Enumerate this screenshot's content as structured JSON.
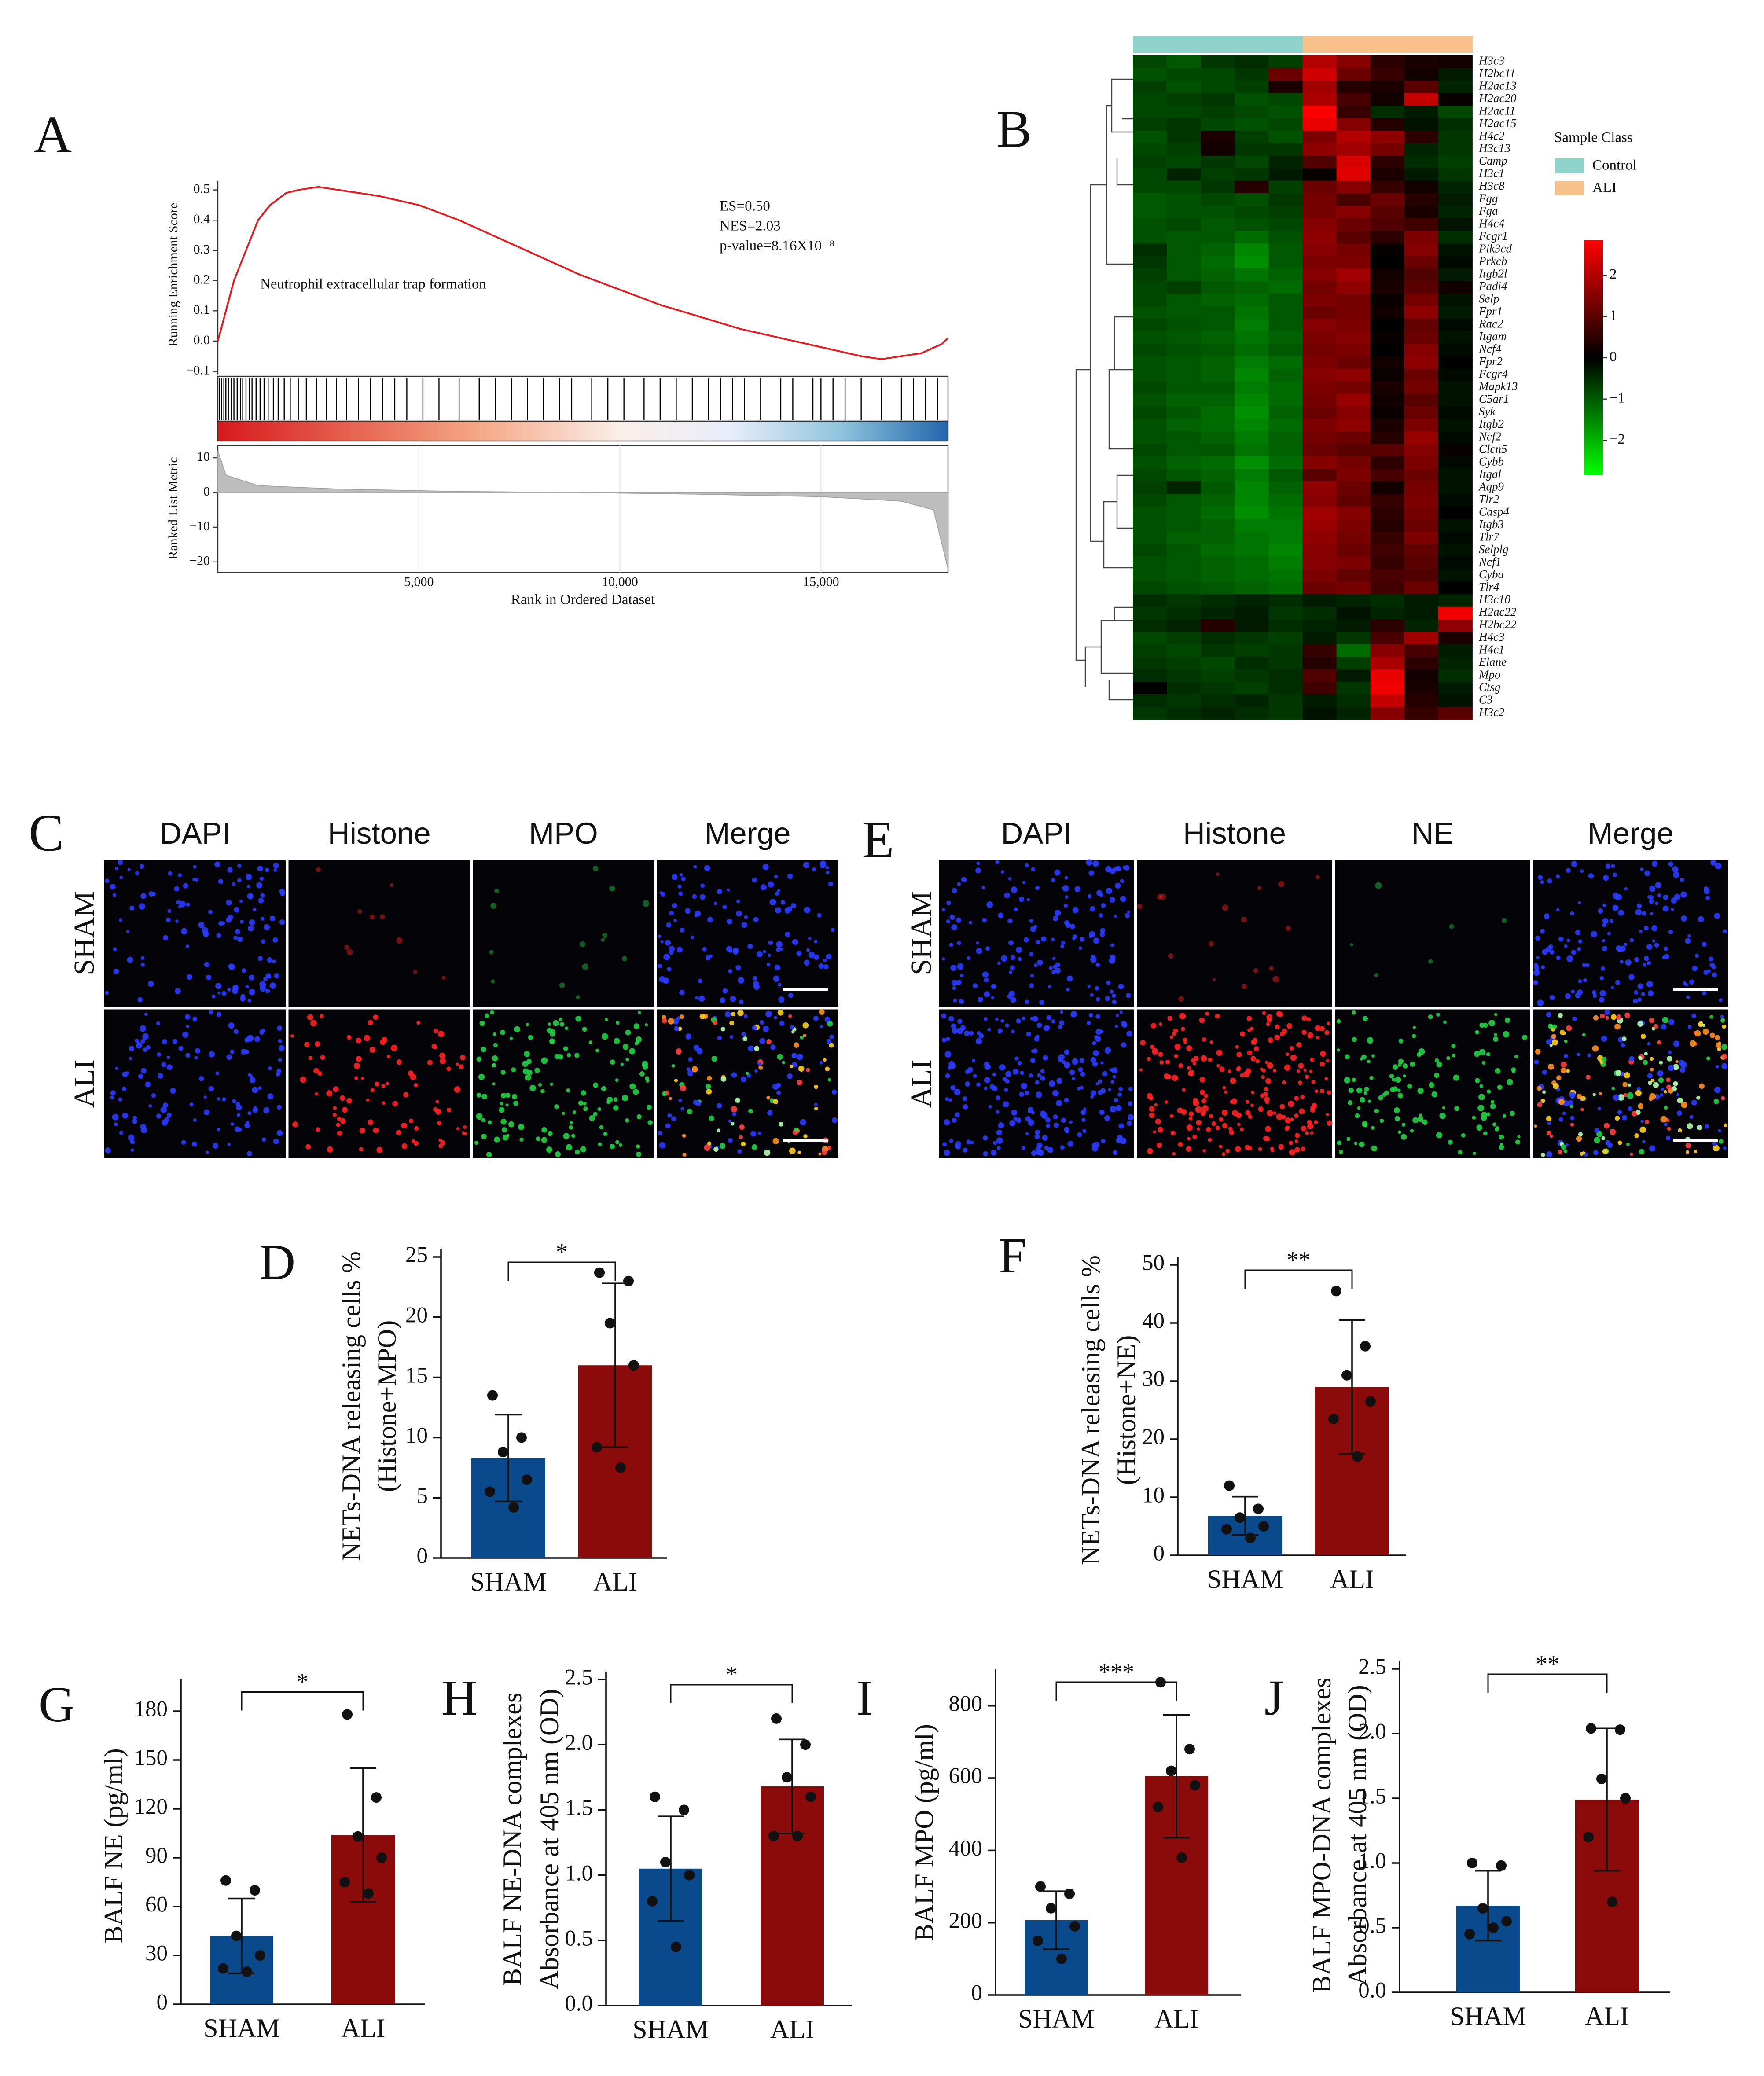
{
  "chart_data": [
    {
      "type": "gsea",
      "panel": "A",
      "ylabel": "Running Enrichment Score",
      "ylim": [
        -0.11,
        0.53
      ],
      "yticks": [
        {
          "value": -0.1,
          "label": "−0.1"
        },
        {
          "value": 0,
          "label": "0.0"
        },
        0.1,
        0.2,
        0.3,
        0.4,
        0.5
      ],
      "x": [
        0,
        200,
        400,
        700,
        1000,
        1300,
        1700,
        2000,
        2500,
        3000,
        4000,
        5000,
        6000,
        7000,
        8000,
        9000,
        10000,
        11000,
        12000,
        13000,
        14000,
        15000,
        16000,
        16500,
        17000,
        17500,
        18000,
        18160
      ],
      "values": [
        0,
        0.1,
        0.2,
        0.3,
        0.4,
        0.45,
        0.49,
        0.5,
        0.51,
        0.5,
        0.48,
        0.45,
        0.4,
        0.34,
        0.28,
        0.22,
        0.17,
        0.12,
        0.08,
        0.04,
        0.01,
        -0.02,
        -0.05,
        -0.06,
        -0.05,
        -0.04,
        -0.01,
        0.01
      ],
      "color": "#e41a1c",
      "gene_set": "Neutrophil extracellular trap formation",
      "annotations": [
        "ES=0.50",
        "NES=2.03",
        "p-value=8.16X10⁻⁸"
      ],
      "hits": [
        40,
        90,
        150,
        200,
        260,
        330,
        400,
        480,
        560,
        620,
        700,
        780,
        850,
        950,
        1050,
        1150,
        1250,
        1380,
        1500,
        1650,
        1800,
        2000,
        2200,
        2450,
        2700,
        2950,
        3200,
        3500,
        3800,
        4100,
        4400,
        4700,
        5100,
        5500,
        6000,
        6500,
        6900,
        7300,
        7700,
        8100,
        8500,
        8800,
        9300,
        9700,
        10100,
        10600,
        11000,
        11400,
        11800,
        12200,
        12500,
        12800,
        13100,
        13500,
        14000,
        14300,
        14800,
        15000,
        15300,
        15600,
        16000,
        16500,
        17000,
        17300,
        17600,
        17900
      ],
      "metric_label": "Ranked List Metric",
      "metric_ylim": [
        -23,
        13.5
      ],
      "metric_yticks": [
        {
          "value": -20,
          "label": "−20"
        },
        {
          "value": -10,
          "label": "−10"
        },
        0,
        10
      ],
      "metric_x": [
        0,
        200,
        1000,
        3000,
        6000,
        9000,
        12000,
        15000,
        17000,
        17800,
        18160
      ],
      "metric_values": [
        12,
        5,
        2,
        1,
        0.3,
        0,
        -0.5,
        -1.2,
        -2.5,
        -5,
        -22
      ],
      "xlim": [
        0,
        18160
      ],
      "xticks": [
        {
          "value": 5000,
          "label": "5,000"
        },
        {
          "value": 10000,
          "label": "10,000"
        },
        {
          "value": 15000,
          "label": "15,000"
        }
      ],
      "xlabel": "Rank in Ordered Dataset"
    },
    {
      "type": "heatmap",
      "panel": "B",
      "rows": [
        "H3c3",
        "H2bc11",
        "H2ac13",
        "H2ac20",
        "H2ac11",
        "H2ac15",
        "H4c2",
        "H3c13",
        "Camp",
        "H3c1",
        "H3c8",
        "Fgg",
        "Fga",
        "H4c4",
        "Fcgr1",
        "Pik3cd",
        "Prkcb",
        "Itgb2l",
        "Padi4",
        "Selp",
        "Fpr1",
        "Rac2",
        "Itgam",
        "Ncf4",
        "Fpr2",
        "Fcgr4",
        "Mapk13",
        "C5ar1",
        "Syk",
        "Itgb2",
        "Ncf2",
        "Clcn5",
        "Cybb",
        "Itgal",
        "Aqp9",
        "Tlr2",
        "Casp4",
        "Itgb3",
        "Tlr7",
        "Selplg",
        "Ncf1",
        "Cyba",
        "Tlr4",
        "H3c10",
        "H2ac22",
        "H2bc22",
        "H4c3",
        "H4c1",
        "Elane",
        "Mpo",
        "Ctsg",
        "C3",
        "H3c2"
      ],
      "column_class": [
        0,
        0,
        0,
        0,
        0,
        1,
        1,
        1,
        1,
        1
      ],
      "legend_title": "Sample Class",
      "classes": [
        {
          "name": "Control",
          "color": "#8fd3cc"
        },
        {
          "name": "ALI",
          "color": "#f9c18a"
        }
      ],
      "colorbar_lim": [
        -2.85,
        2.85
      ],
      "colorbar_ticks": [
        2,
        1,
        0,
        {
          "value": -1,
          "label": "−1"
        },
        {
          "value": -2,
          "label": "−2"
        }
      ],
      "colors": {
        "low": "#00ff00",
        "mid": "#000000",
        "high": "#ff0000"
      },
      "values": [
        [
          -0.8,
          -1,
          -0.6,
          -0.5,
          -0.7,
          2,
          1.5,
          0.5,
          0.3,
          0.2
        ],
        [
          -0.9,
          -0.8,
          -0.8,
          -0.6,
          1.2,
          2.3,
          1.2,
          0.6,
          0.2,
          -0.3
        ],
        [
          -0.7,
          -0.9,
          -0.8,
          -0.7,
          0.3,
          1.8,
          0.4,
          0.3,
          1,
          -0.4
        ],
        [
          -0.8,
          -0.7,
          -0.6,
          -0.9,
          -0.8,
          1.9,
          0.8,
          0.2,
          2.2,
          0.1
        ],
        [
          -0.8,
          -0.8,
          -0.7,
          -0.8,
          -0.9,
          2.8,
          0.6,
          -0.5,
          -0.3,
          -0.8
        ],
        [
          -0.7,
          -0.6,
          -0.8,
          -0.9,
          -0.8,
          2.6,
          1.5,
          0.4,
          -0.2,
          -0.5
        ],
        [
          -0.9,
          -0.6,
          0.3,
          -0.7,
          -0.9,
          1.4,
          2,
          1.6,
          0.5,
          -0.6
        ],
        [
          -0.8,
          -0.7,
          0.2,
          -0.6,
          -0.6,
          1.6,
          1.8,
          1.3,
          -0.4,
          -0.6
        ],
        [
          -0.7,
          -0.8,
          -0.6,
          -0.8,
          -0.4,
          0.9,
          2.4,
          0.5,
          -0.5,
          -0.7
        ],
        [
          -0.8,
          -0.4,
          -0.7,
          -0.6,
          -0.3,
          0.1,
          2.5,
          0.3,
          -0.3,
          -0.6
        ],
        [
          -0.8,
          -0.8,
          -0.6,
          0.4,
          -0.7,
          1.2,
          1.5,
          0.6,
          0.2,
          -0.4
        ],
        [
          -1,
          -0.9,
          -0.8,
          -0.9,
          -0.6,
          1.3,
          0.8,
          1.2,
          0.4,
          -0.3
        ],
        [
          -1,
          -0.9,
          -0.9,
          -0.8,
          -0.7,
          1.3,
          1.5,
          1,
          0.3,
          -0.4
        ],
        [
          -0.9,
          -0.8,
          -1,
          -0.9,
          -0.8,
          1.5,
          1.2,
          0.9,
          0.7,
          -0.2
        ],
        [
          -0.9,
          -1,
          -1,
          -1.2,
          -0.9,
          1.6,
          1,
          0.5,
          1.4,
          -0.5
        ],
        [
          -0.5,
          -1,
          -1.1,
          -1.5,
          -1,
          1.5,
          1.3,
          0.1,
          1.5,
          -0.2
        ],
        [
          -0.6,
          -1,
          -1.2,
          -1.6,
          -1,
          1.4,
          1.4,
          0,
          1.2,
          -0.1
        ],
        [
          -0.7,
          -1,
          -1.1,
          -1.3,
          -1.1,
          1.5,
          1.8,
          0.2,
          0.9,
          -0.3
        ],
        [
          -0.8,
          -0.7,
          -1,
          -1.1,
          -1.2,
          1.3,
          1.6,
          0.3,
          1,
          0.2
        ],
        [
          -0.8,
          -1,
          -1.1,
          -1.2,
          -1,
          1.4,
          1.3,
          0.1,
          1.3,
          -0.2
        ],
        [
          -0.9,
          -1,
          -1,
          -1.3,
          -1,
          1.2,
          1.3,
          0.2,
          1.6,
          -0.3
        ],
        [
          -0.8,
          -0.9,
          -1,
          -1.4,
          -1,
          1.5,
          1.4,
          0,
          1.1,
          -0.1
        ],
        [
          -0.9,
          -1,
          -1.1,
          -1.3,
          -1.1,
          1.4,
          1.5,
          0.1,
          1.2,
          -0.2
        ],
        [
          -0.8,
          -0.9,
          -1,
          -1.2,
          -1,
          1.3,
          1.4,
          0,
          1.5,
          -0.1
        ],
        [
          -0.9,
          -1,
          -1.1,
          -1.4,
          -1.2,
          1.4,
          1.2,
          0.2,
          1.6,
          0
        ],
        [
          -0.9,
          -1,
          -1.1,
          -1.5,
          -1.1,
          1.5,
          1.6,
          0.1,
          1.2,
          -0.1
        ],
        [
          -0.8,
          -1,
          -1,
          -1.4,
          -1.2,
          1.4,
          1.3,
          0.3,
          1.3,
          -0.2
        ],
        [
          -0.9,
          -1.1,
          -1.1,
          -1.5,
          -1.2,
          1.3,
          1.7,
          0.2,
          1,
          -0.2
        ],
        [
          -0.8,
          -1,
          -1.2,
          -1.6,
          -1.1,
          1.2,
          1.5,
          0.1,
          1.2,
          -0.1
        ],
        [
          -0.9,
          -1.1,
          -1.2,
          -1.5,
          -1.2,
          1.4,
          1.6,
          0.3,
          1.4,
          -0.2
        ],
        [
          -0.9,
          -1,
          -1.1,
          -1.4,
          -1.1,
          1.3,
          1.2,
          0.4,
          1.7,
          -0.1
        ],
        [
          -0.8,
          -1,
          -1,
          -1.3,
          -1.1,
          1.2,
          1,
          1,
          1.5,
          0.1
        ],
        [
          -0.9,
          -1.1,
          -1.2,
          -1.6,
          -1.2,
          1.5,
          1.3,
          0.5,
          1.4,
          -0.1
        ],
        [
          -0.8,
          -1,
          -1.1,
          -1.4,
          -1,
          1,
          1.4,
          0.8,
          1.2,
          -0.2
        ],
        [
          -0.7,
          -0.4,
          -1,
          -1.5,
          -1.1,
          1.6,
          1.2,
          0.2,
          1.3,
          -0.2
        ],
        [
          -0.8,
          -1,
          -1.1,
          -1.5,
          -1.2,
          1.5,
          1.1,
          0.6,
          1.4,
          -0.1
        ],
        [
          -0.9,
          -1,
          -1.2,
          -1.6,
          -1.3,
          1.8,
          1.5,
          0.5,
          1.3,
          0
        ],
        [
          -0.9,
          -1,
          -1.1,
          -1.4,
          -1.4,
          1.7,
          1.4,
          0.4,
          1.2,
          -0.2
        ],
        [
          -0.9,
          -1.1,
          -1.1,
          -1.3,
          -1.4,
          1.6,
          1.3,
          0.6,
          1.4,
          -0.1
        ],
        [
          -0.8,
          -1,
          -1.2,
          -1.3,
          -1.5,
          1.5,
          1.2,
          0.7,
          1.1,
          -0.2
        ],
        [
          -0.9,
          -1,
          -1.1,
          -1.2,
          -1.4,
          1.5,
          1.4,
          0.6,
          1,
          -0.1
        ],
        [
          -0.9,
          -1,
          -1.1,
          -1.2,
          -1.3,
          1.4,
          1.1,
          0.8,
          0.9,
          -0.2
        ],
        [
          -0.8,
          -0.9,
          -1,
          -1.1,
          -1.2,
          1.2,
          1.3,
          0.7,
          1.2,
          0
        ],
        [
          -0.5,
          -0.6,
          -0.5,
          -0.4,
          -0.5,
          -0.3,
          -0.4,
          -0.5,
          -0.3,
          -0.4
        ],
        [
          -0.6,
          -0.5,
          -0.4,
          -0.3,
          -0.6,
          -0.5,
          -0.2,
          -0.4,
          -0.3,
          2.7
        ],
        [
          -0.5,
          -0.4,
          0.4,
          -0.3,
          -0.5,
          -0.4,
          -0.3,
          0.5,
          -0.4,
          1.6
        ],
        [
          -0.8,
          -0.7,
          -0.5,
          -0.6,
          -0.7,
          -0.3,
          -0.6,
          0.8,
          1.8,
          0.3
        ],
        [
          -0.7,
          -0.8,
          -0.6,
          -0.7,
          -0.6,
          0.6,
          -1.2,
          1.5,
          0.8,
          -0.3
        ],
        [
          -0.6,
          -0.7,
          -0.8,
          -0.5,
          -0.6,
          0.4,
          -0.7,
          1.9,
          0.5,
          -0.4
        ],
        [
          -0.5,
          -0.6,
          -0.7,
          -0.6,
          -0.5,
          0.9,
          -0.3,
          2.6,
          0.2,
          -0.5
        ],
        [
          0,
          -0.5,
          -0.6,
          -0.7,
          -0.5,
          0.7,
          -0.6,
          2.7,
          0.3,
          -0.3
        ],
        [
          -0.5,
          -0.6,
          -0.5,
          -0.4,
          -0.6,
          -0.3,
          -0.5,
          2.2,
          0.4,
          -0.2
        ],
        [
          -0.6,
          -0.5,
          -0.4,
          -0.5,
          -0.6,
          -0.2,
          -0.4,
          1.5,
          0.6,
          1
        ]
      ]
    },
    {
      "type": "micrograph",
      "panel": "C",
      "columns": [
        "DAPI",
        "Histone",
        "MPO",
        "Merge"
      ],
      "column_colors": [
        "#1f2fe0",
        "#e0202a",
        "#18a848",
        "#111111"
      ],
      "rows": [
        "SHAM",
        "ALI"
      ]
    },
    {
      "type": "micrograph",
      "panel": "E",
      "columns": [
        "DAPI",
        "Histone",
        "NE",
        "Merge"
      ],
      "column_colors": [
        "#1f2fe0",
        "#e0202a",
        "#18a848",
        "#111111"
      ],
      "rows": [
        "SHAM",
        "ALI"
      ]
    },
    {
      "type": "bar",
      "panel": "D",
      "ylabel": [
        "NETs-DNA  releasing cells %",
        "(Histone+MPO)"
      ],
      "categories": [
        "SHAM",
        "ALI"
      ],
      "colors": [
        "#0a4a8c",
        "#8b0a0a"
      ],
      "values": [
        8.3,
        16
      ],
      "errors": [
        3.6,
        6.8
      ],
      "points": [
        [
          13.5,
          10,
          8.8,
          6.5,
          5.5,
          4.2
        ],
        [
          23.7,
          23,
          19.5,
          16,
          9.2,
          7.5
        ]
      ],
      "significance": "*",
      "ylim": [
        0,
        25
      ],
      "yticks": [
        0,
        5,
        10,
        15,
        20,
        25
      ]
    },
    {
      "type": "bar",
      "panel": "F",
      "ylabel": [
        "NETs-DNA  releasing cells %",
        "(Histone+NE)"
      ],
      "categories": [
        "SHAM",
        "ALI"
      ],
      "colors": [
        "#0a4a8c",
        "#8b0a0a"
      ],
      "values": [
        6.8,
        29
      ],
      "errors": [
        3.3,
        11.5
      ],
      "points": [
        [
          12,
          8,
          6.5,
          5,
          4.5,
          3
        ],
        [
          45.5,
          36,
          31,
          26.5,
          23.5,
          17
        ]
      ],
      "significance": "**",
      "ylim": [
        0,
        50
      ],
      "yticks": [
        0,
        10,
        20,
        30,
        40,
        50
      ]
    },
    {
      "type": "bar",
      "panel": "G",
      "ylabel": [
        "BALF NE  (pg/ml)"
      ],
      "categories": [
        "SHAM",
        "ALI"
      ],
      "colors": [
        "#0a4a8c",
        "#8b0a0a"
      ],
      "values": [
        42,
        104
      ],
      "errors": [
        23,
        41
      ],
      "points": [
        [
          76,
          70,
          42,
          30,
          22,
          20
        ],
        [
          178,
          127,
          103,
          90,
          75,
          68
        ]
      ],
      "significance": "*",
      "ylim": [
        0,
        195
      ],
      "yticks": [
        0,
        30,
        60,
        90,
        120,
        150,
        180
      ]
    },
    {
      "type": "bar",
      "panel": "H",
      "ylabel": [
        "BALF NE-DNA  complexes",
        "Absorbance at 405 nm (OD)"
      ],
      "categories": [
        "SHAM",
        "ALI"
      ],
      "colors": [
        "#0a4a8c",
        "#8b0a0a"
      ],
      "values": [
        1.05,
        1.68
      ],
      "errors": [
        0.4,
        0.36
      ],
      "points": [
        [
          1.6,
          1.5,
          1.1,
          1.0,
          0.8,
          0.45
        ],
        [
          2.2,
          2.0,
          1.75,
          1.6,
          1.3,
          1.3
        ]
      ],
      "significance": "*",
      "ylim": [
        0,
        2.5
      ],
      "yticks": [
        {
          "value": 0,
          "label": "0.0"
        },
        0.5,
        {
          "value": 1,
          "label": "1.0"
        },
        1.5,
        {
          "value": 2,
          "label": "2.0"
        },
        2.5
      ]
    },
    {
      "type": "bar",
      "panel": "I",
      "ylabel": [
        "BALF MPO (pg/ml)"
      ],
      "categories": [
        "SHAM",
        "ALI"
      ],
      "colors": [
        "#0a4a8c",
        "#8b0a0a"
      ],
      "values": [
        207,
        605
      ],
      "errors": [
        80,
        170
      ],
      "points": [
        [
          300,
          280,
          240,
          190,
          150,
          100
        ],
        [
          865,
          680,
          620,
          580,
          520,
          380
        ]
      ],
      "significance": "***",
      "ylim": [
        0,
        880
      ],
      "yticks": [
        0,
        200,
        400,
        600,
        800
      ]
    },
    {
      "type": "bar",
      "panel": "J",
      "ylabel": [
        "BALF MPO-DNA  complexes",
        "Absorbance at 405 nm (OD)"
      ],
      "categories": [
        "SHAM",
        "ALI"
      ],
      "colors": [
        "#0a4a8c",
        "#8b0a0a"
      ],
      "values": [
        0.67,
        1.49
      ],
      "errors": [
        0.27,
        0.55
      ],
      "points": [
        [
          1.0,
          0.98,
          0.65,
          0.55,
          0.45,
          0.5
        ],
        [
          2.04,
          2.03,
          1.65,
          1.5,
          1.2,
          0.7
        ]
      ],
      "significance": "**",
      "ylim": [
        0,
        2.5
      ],
      "yticks": [
        {
          "value": 0,
          "label": "0.0"
        },
        0.5,
        {
          "value": 1,
          "label": "1.0"
        },
        1.5,
        {
          "value": 2,
          "label": "2.0"
        },
        2.5
      ]
    }
  ]
}
